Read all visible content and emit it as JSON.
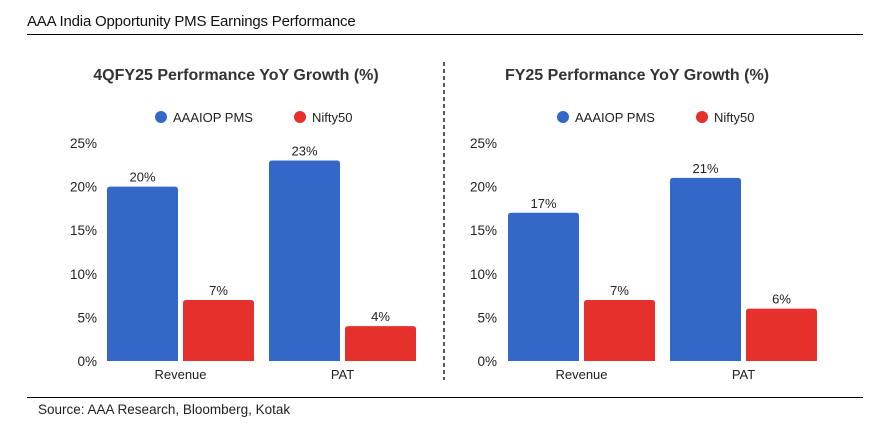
{
  "header": {
    "title": "AAA India Opportunity PMS Earnings Performance"
  },
  "footer": {
    "source": "Source: AAA Research, Bloomberg, Kotak"
  },
  "colors": {
    "pms": "#3468c8",
    "nifty": "#e6302c"
  },
  "chart_data": [
    {
      "type": "bar",
      "title": "4QFY25 Performance YoY Growth (%)",
      "categories": [
        "Revenue",
        "PAT"
      ],
      "series": [
        {
          "name": "AAAIOP PMS",
          "values": [
            20,
            23
          ],
          "labels": [
            "20%",
            "23%"
          ]
        },
        {
          "name": "Nifty50",
          "values": [
            7,
            4
          ],
          "labels": [
            "7%",
            "4%"
          ]
        }
      ],
      "ylim": [
        0,
        25
      ],
      "yticks": [
        0,
        5,
        10,
        15,
        20,
        25
      ],
      "ytick_labels": [
        "0%",
        "5%",
        "10%",
        "15%",
        "20%",
        "25%"
      ],
      "legend": "top",
      "grid": false
    },
    {
      "type": "bar",
      "title": "FY25 Performance YoY Growth (%)",
      "categories": [
        "Revenue",
        "PAT"
      ],
      "series": [
        {
          "name": "AAAIOP PMS",
          "values": [
            17,
            21
          ],
          "labels": [
            "17%",
            "21%"
          ]
        },
        {
          "name": "Nifty50",
          "values": [
            7,
            6
          ],
          "labels": [
            "7%",
            "6%"
          ]
        }
      ],
      "ylim": [
        0,
        25
      ],
      "yticks": [
        0,
        5,
        10,
        15,
        20,
        25
      ],
      "ytick_labels": [
        "0%",
        "5%",
        "10%",
        "15%",
        "20%",
        "25%"
      ],
      "legend": "top",
      "grid": false
    }
  ]
}
